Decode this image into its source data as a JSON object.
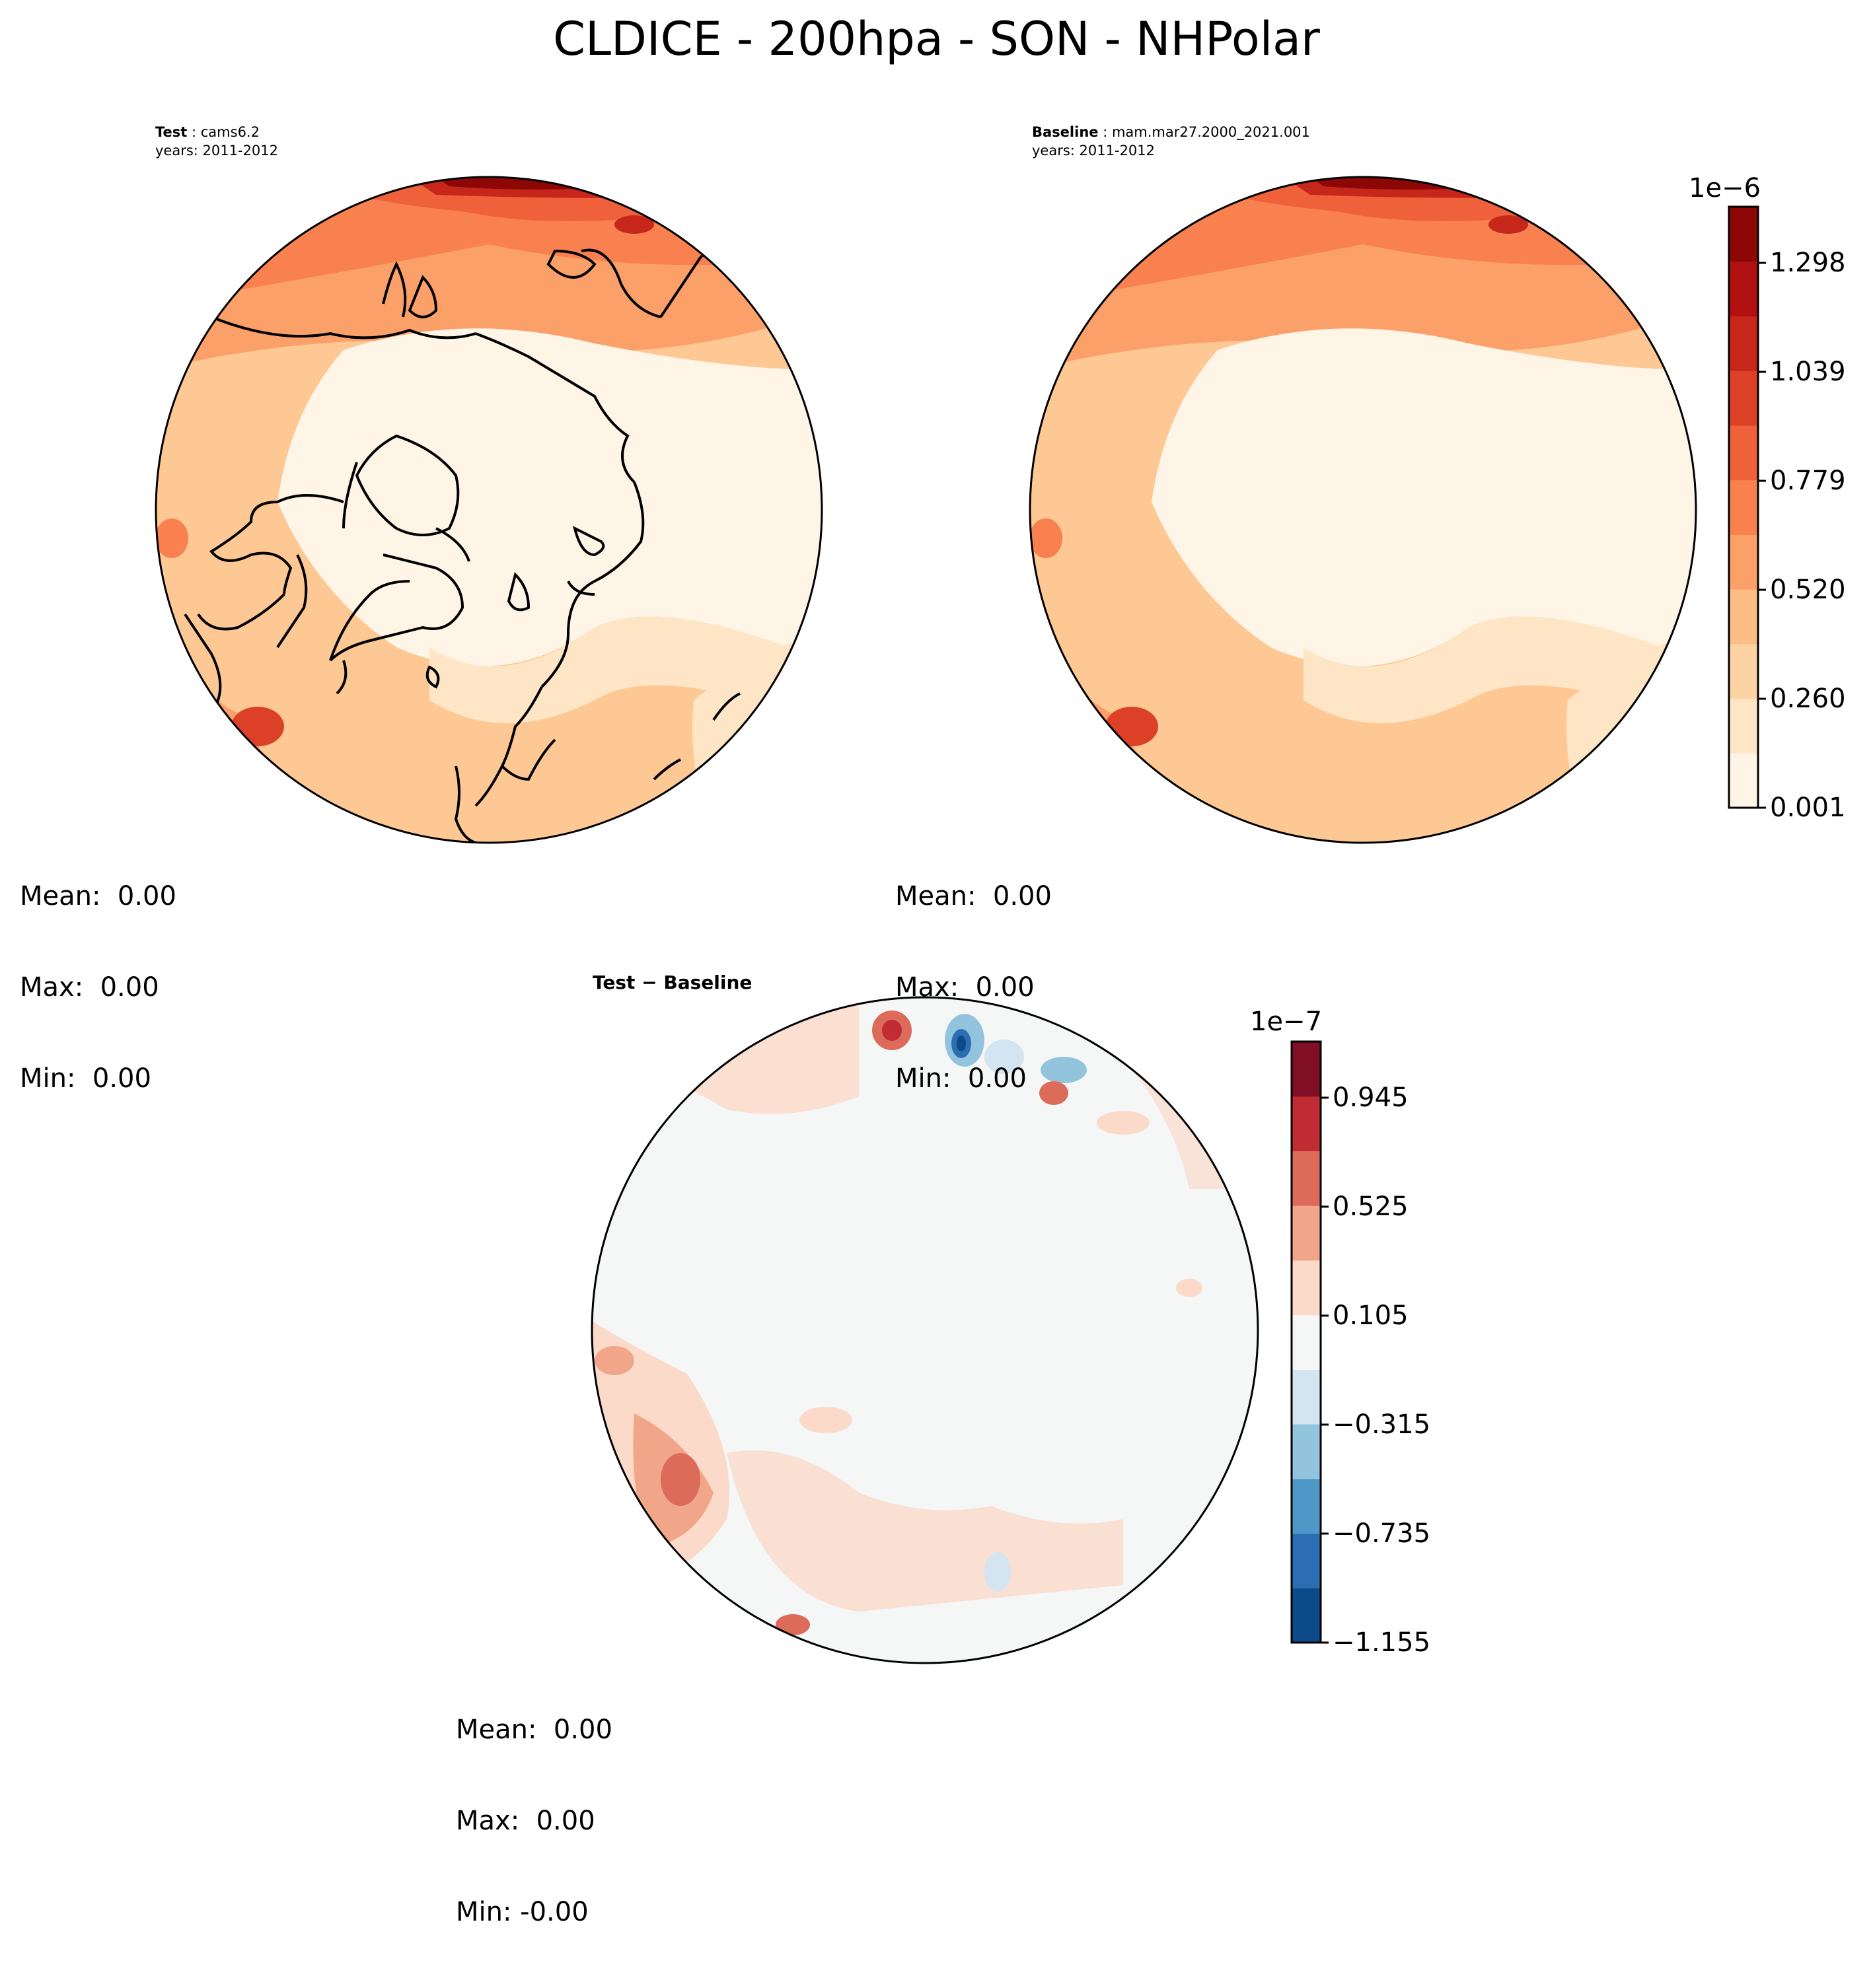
{
  "title": "CLDICE - 200hpa - SON - NHPolar",
  "panels": [
    {
      "id": "test",
      "title_bold": "Test",
      "title_rest": " : cams6.2",
      "years": "years: 2011-2012",
      "stats": {
        "mean": "Mean:  0.00",
        "max": "Max:  0.00",
        "min": "Min:  0.00"
      }
    },
    {
      "id": "baseline",
      "title_bold": "Baseline",
      "title_rest": " : mam.mar27.2000_2021.001",
      "years": "years: 2011-2012",
      "stats": {
        "mean": "Mean:  0.00",
        "max": "Max:  0.00",
        "min": "Min:  0.00"
      }
    },
    {
      "id": "diff",
      "title": "Test − Baseline",
      "stats": {
        "mean": "Mean:  0.00",
        "max": "Max:  0.00",
        "min": "Min: -0.00"
      }
    }
  ],
  "colorbar_main": {
    "exponent": "1e−6",
    "ticks": [
      "0.001",
      "0.260",
      "0.520",
      "0.779",
      "1.039",
      "1.298"
    ],
    "colors": [
      "#fff5e6",
      "#fee5c6",
      "#fdd3a4",
      "#fdbd84",
      "#fca06a",
      "#f8814f",
      "#ee613a",
      "#dc4128",
      "#c7261b",
      "#b01110",
      "#8e0707"
    ]
  },
  "colorbar_diff": {
    "exponent": "1e−7",
    "ticks": [
      "−1.155",
      "−0.735",
      "−0.315",
      "0.105",
      "0.525",
      "0.945"
    ],
    "colors": [
      "#0d4a8a",
      "#2b6fb2",
      "#4e98c8",
      "#93c4de",
      "#d2e5f0",
      "#f5f6f6",
      "#fbdaca",
      "#f2a689",
      "#dc6b59",
      "#bf2c34",
      "#800f26"
    ]
  },
  "chart_data": {
    "type": "heatmap",
    "projection": "north polar stereographic",
    "title": "CLDICE - 200hpa - SON - NHPolar",
    "panels": [
      {
        "name": "Test",
        "case": "cams6.2",
        "years": "2011-2012",
        "colorbar_range": [
          1e-09,
          1.3e-06
        ],
        "mean": 0.0,
        "max": 0.0,
        "min": 0.0
      },
      {
        "name": "Baseline",
        "case": "mam.mar27.2000_2021.001",
        "years": "2011-2012",
        "colorbar_range": [
          1e-09,
          1.3e-06
        ],
        "mean": 0.0,
        "max": 0.0,
        "min": 0.0
      },
      {
        "name": "Test - Baseline",
        "colorbar_range": [
          -1.155e-07,
          9.45e-08
        ],
        "mean": 0.0,
        "max": 0.0,
        "min": -0.0
      }
    ],
    "colorbar_main_ticks": [
      0.001,
      0.26,
      0.52,
      0.779,
      1.039,
      1.298
    ],
    "colorbar_diff_ticks": [
      -1.155,
      -0.735,
      -0.315,
      0.105,
      0.525,
      0.945
    ]
  }
}
